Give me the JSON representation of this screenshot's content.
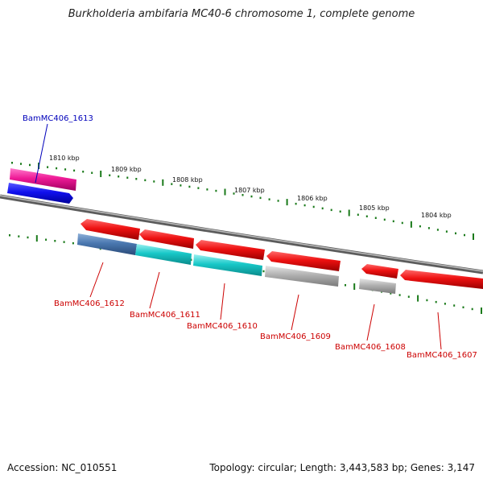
{
  "title": "Burkholderia ambifaria MC40-6 chromosome 1, complete genome",
  "footer": {
    "accession": "Accession: NC_010551",
    "summary": "Topology: circular; Length: 3,443,583 bp; Genes: 3,147"
  },
  "colors": {
    "backbone": "#7f7f7f",
    "tick": "#1a7a1a",
    "gene_red": "#e8101a",
    "gene_pink": "#e8209a",
    "gene_blue": "#1010e0",
    "gene_steelblue": "#4a78b0",
    "gene_cyan": "#18c8c8",
    "gene_gray": "#a8a8a8",
    "label_red": "#cc0000",
    "label_blue": "#0000bb"
  },
  "kbp_labels": [
    "1810 kbp",
    "1809 kbp",
    "1808 kbp",
    "1807 kbp",
    "1806 kbp",
    "1805 kbp",
    "1804 kbp"
  ],
  "gene_labels": {
    "g1613": "BamMC406_1613",
    "g1612": "BamMC406_1612",
    "g1611": "BamMC406_1611",
    "g1610": "BamMC406_1610",
    "g1609": "BamMC406_1609",
    "g1608": "BamMC406_1608",
    "g1607": "BamMC406_1607"
  }
}
